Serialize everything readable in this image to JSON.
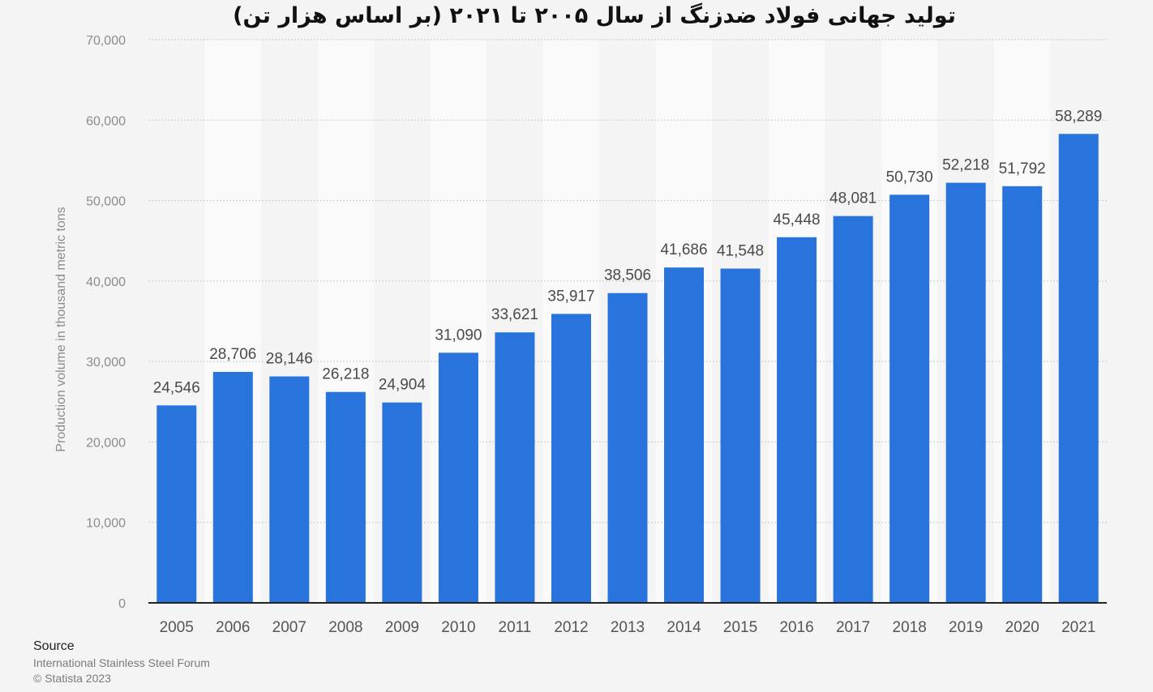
{
  "chart_data": {
    "type": "bar",
    "title": "تولید جهانی فولاد ضدزنگ از سال ۲۰۰۵ تا ۲۰۲۱ (بر اساس هزار تن)",
    "xlabel": "",
    "ylabel": "Production volume in thousand metric tons",
    "categories": [
      "2005",
      "2006",
      "2007",
      "2008",
      "2009",
      "2010",
      "2011",
      "2012",
      "2013",
      "2014",
      "2015",
      "2016",
      "2017",
      "2018",
      "2019",
      "2020",
      "2021"
    ],
    "values": [
      24546,
      28706,
      28146,
      26218,
      24904,
      31090,
      33621,
      35917,
      38506,
      41686,
      41548,
      45448,
      48081,
      50730,
      52218,
      51792,
      58289
    ],
    "value_labels": [
      "24,546",
      "28,706",
      "28,146",
      "26,218",
      "24,904",
      "31,090",
      "33,621",
      "35,917",
      "38,506",
      "41,686",
      "41,548",
      "45,448",
      "48,081",
      "50,730",
      "52,218",
      "51,792",
      "58,289"
    ],
    "ylim": [
      0,
      70000
    ],
    "yticks": [
      0,
      10000,
      20000,
      30000,
      40000,
      50000,
      60000,
      70000
    ],
    "ytick_labels": [
      "0",
      "10,000",
      "20,000",
      "30,000",
      "40,000",
      "50,000",
      "60,000",
      "70,000"
    ],
    "grid": true,
    "bar_color": "#2874dc",
    "legend": "none"
  },
  "footer": {
    "source_heading": "Source",
    "source_name": "International Stainless Steel Forum",
    "copyright": "© Statista 2023"
  }
}
